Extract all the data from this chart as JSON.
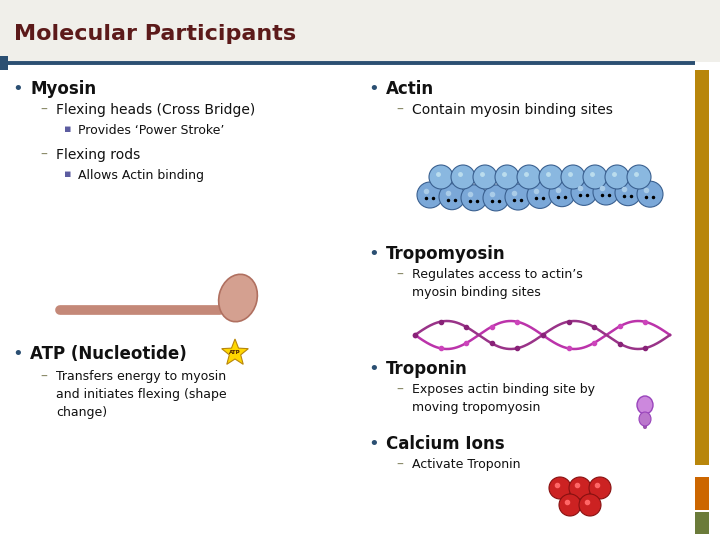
{
  "title": "Molecular Participants",
  "title_color": "#5C1A1A",
  "title_fontsize": 16,
  "bg_color": "#FFFFFF",
  "title_bg_color": "#F0EFEA",
  "line_color": "#2B4F72",
  "right_bar_color": "#B8860B",
  "right_bar2_color": "#6B7B3A",
  "bullet_color": "#2B4F72",
  "dash_color": "#888866",
  "square_color": "#5C5CA0",
  "text_color": "#111111",
  "bullet1_main": "Myosin",
  "bullet1_sub1": "Flexing heads (Cross Bridge)",
  "bullet1_sub1_sub1": "Provides ‘Power Stroke’",
  "bullet1_sub2": "Flexing rods",
  "bullet1_sub2_sub1": "Allows Actin binding",
  "bullet2_main": "ATP (Nucleotide)",
  "bullet2_sub1": "Transfers energy to myosin\nand initiates flexing (shape\nchange)",
  "bullet3_main": "Actin",
  "bullet3_sub1": "Contain myosin binding sites",
  "bullet4_main": "Tropomyosin",
  "bullet4_sub1": "Regulates access to actin’s\nmyosin binding sites",
  "bullet5_main": "Troponin",
  "bullet5_sub1": "Exposes actin binding site by\nmoving tropomyosin",
  "bullet6_main": "Calcium Ions",
  "bullet6_sub1": "Activate Troponin",
  "main_fontsize": 12,
  "sub_fontsize": 10,
  "subsub_fontsize": 9
}
